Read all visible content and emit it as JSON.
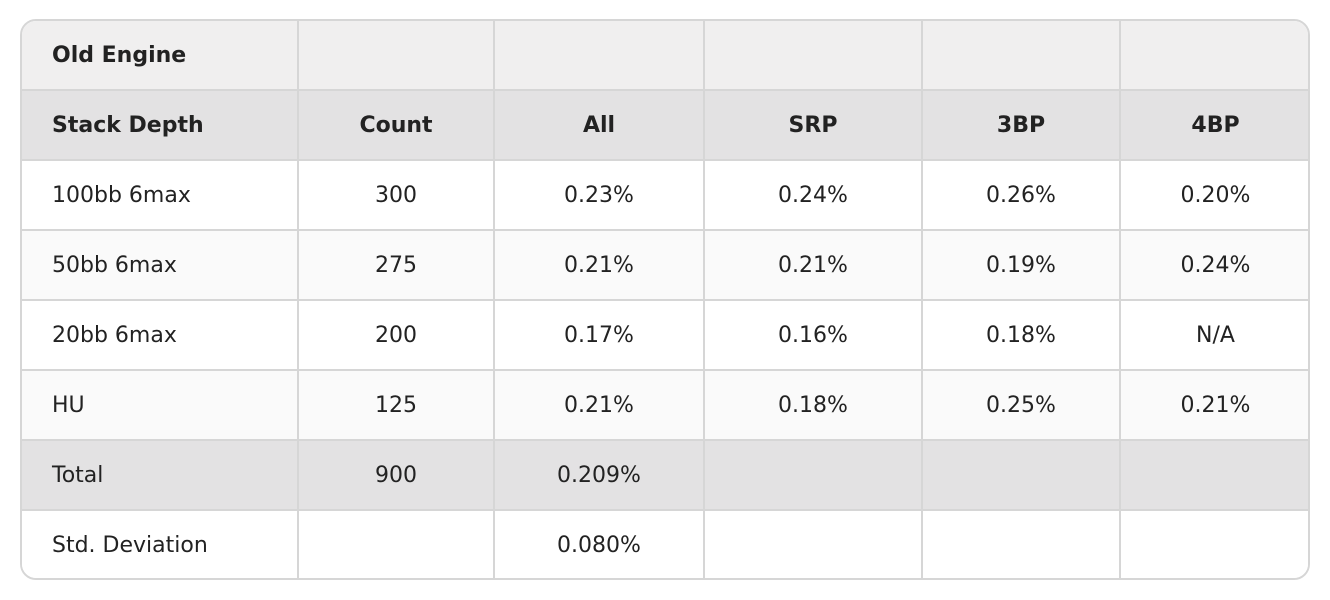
{
  "table": {
    "title": "Old Engine",
    "headers": [
      "Stack Depth",
      "Count",
      "All",
      "SRP",
      "3BP",
      "4BP"
    ],
    "rows": [
      [
        "100bb 6max",
        "300",
        "0.23%",
        "0.24%",
        "0.26%",
        "0.20%"
      ],
      [
        "50bb 6max",
        "275",
        "0.21%",
        "0.21%",
        "0.19%",
        "0.24%"
      ],
      [
        "20bb 6max",
        "200",
        "0.17%",
        "0.16%",
        "0.18%",
        "N/A"
      ],
      [
        "HU",
        "125",
        "0.21%",
        "0.18%",
        "0.25%",
        "0.21%"
      ]
    ],
    "total": [
      "Total",
      "900",
      "0.209%",
      "",
      "",
      ""
    ],
    "std_dev": [
      "Std. Deviation",
      "",
      "0.080%",
      "",
      "",
      ""
    ]
  }
}
